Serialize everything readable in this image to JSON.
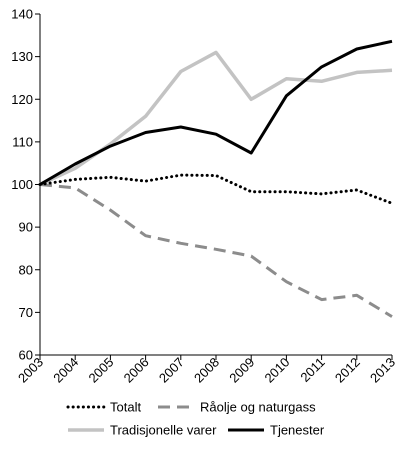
{
  "chart_data": {
    "type": "line",
    "title": "",
    "xlabel": "",
    "ylabel": "",
    "categories": [
      "2003",
      "2004",
      "2005",
      "2006",
      "2007",
      "2008",
      "2009",
      "2010",
      "2011",
      "2012",
      "2013"
    ],
    "ylim": [
      60,
      140
    ],
    "yticks": [
      "60",
      "70",
      "80",
      "90",
      "100",
      "110",
      "120",
      "130",
      "140"
    ],
    "grid": false,
    "legend_position": "bottom",
    "series": [
      {
        "name": "Totalt",
        "color": "#000000",
        "style": "dotted",
        "values": [
          100,
          101.2,
          101.7,
          100.8,
          102.2,
          102.1,
          98.3,
          98.3,
          97.8,
          98.7,
          95.6
        ]
      },
      {
        "name": "Råolje og naturgass",
        "color": "#8c8c8c",
        "style": "dashed",
        "values": [
          100,
          99.2,
          94.0,
          88.0,
          86.2,
          84.8,
          83.2,
          77.2,
          73.0,
          74.0,
          69.0
        ]
      },
      {
        "name": "Tradisjonelle varer",
        "color": "#c3c3c3",
        "style": "solid",
        "values": [
          100,
          103.8,
          109.5,
          116.0,
          126.5,
          131.0,
          120.0,
          124.8,
          124.2,
          126.3,
          126.8
        ]
      },
      {
        "name": "Tjenester",
        "color": "#000000",
        "style": "solid",
        "values": [
          100,
          104.8,
          109.0,
          112.2,
          113.5,
          111.8,
          107.4,
          120.8,
          127.6,
          131.8,
          133.6
        ]
      }
    ]
  }
}
